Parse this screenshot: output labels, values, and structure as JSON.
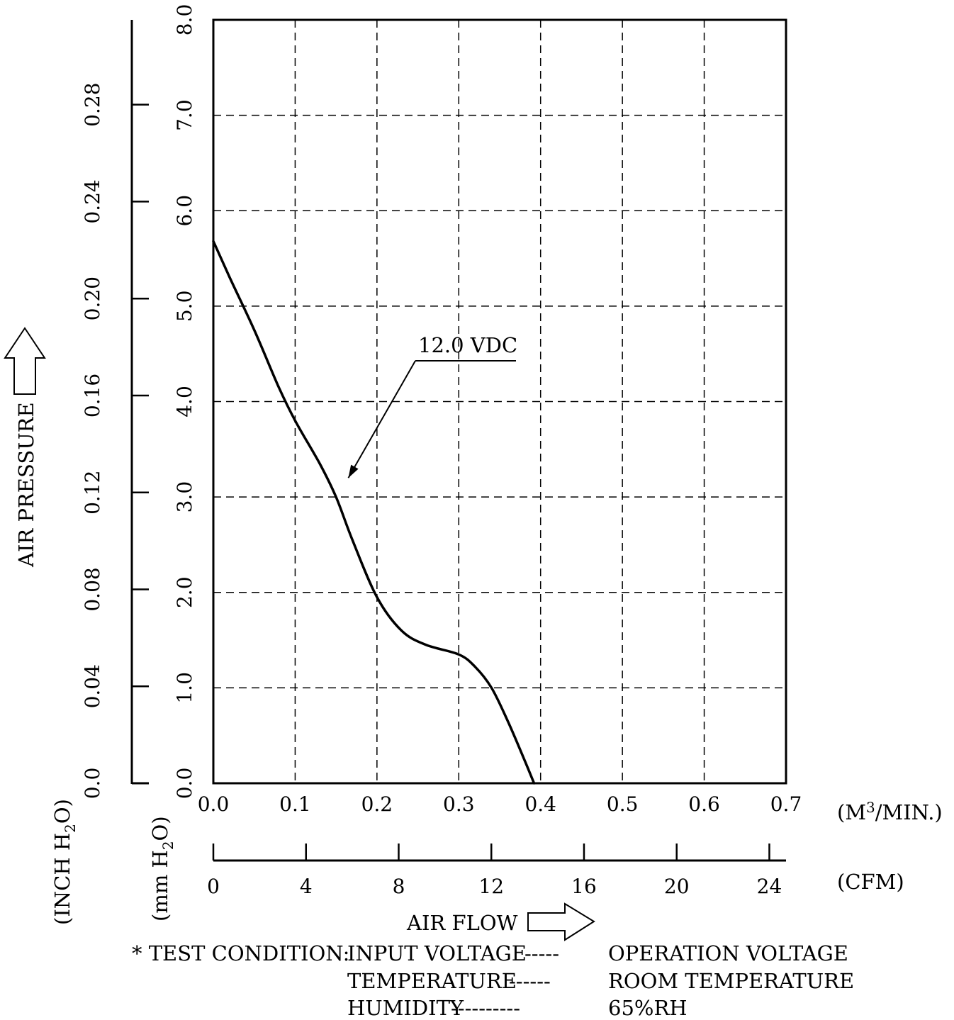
{
  "chart_data": {
    "type": "line",
    "xlabel": "AIR FLOW",
    "ylabel": "AIR PRESSURE",
    "x_unit": "(M3/MIN.)",
    "x_unit_parts": {
      "base": "(M",
      "sup": "3",
      "rest": "/MIN.)"
    },
    "x_unit_secondary": "(CFM)",
    "y_unit": "(mm H2O)",
    "y_unit_parts": {
      "pre": "(mm H",
      "sub": "2",
      "post": "O)"
    },
    "y_unit_secondary": "(INCH H2O)",
    "y_unit_secondary_parts": {
      "pre": "(INCH H",
      "sub": "2",
      "post": "O)"
    },
    "xlim": [
      0,
      0.7
    ],
    "ylim": [
      0,
      8.0
    ],
    "secondary_x_lim": [
      0,
      24.72
    ],
    "secondary_y_lim": [
      0,
      0.315
    ],
    "x_ticks": [
      "0.0",
      "0.1",
      "0.2",
      "0.3",
      "0.4",
      "0.5",
      "0.6",
      "0.7"
    ],
    "y_ticks": [
      "0.0",
      "1.0",
      "2.0",
      "3.0",
      "4.0",
      "5.0",
      "6.0",
      "7.0",
      "8.0"
    ],
    "secondary_x_ticks": [
      "0",
      "4",
      "8",
      "12",
      "16",
      "20",
      "24"
    ],
    "secondary_y_ticks": [
      "0.0",
      "0.04",
      "0.08",
      "0.12",
      "0.16",
      "0.20",
      "0.24",
      "0.28"
    ],
    "grid": true,
    "series": [
      {
        "name": "12.0 VDC",
        "x": [
          0.0,
          0.02,
          0.05,
          0.08,
          0.1,
          0.13,
          0.15,
          0.17,
          0.2,
          0.23,
          0.26,
          0.3,
          0.32,
          0.34,
          0.36,
          0.38,
          0.392
        ],
        "y": [
          5.68,
          5.3,
          4.75,
          4.15,
          3.8,
          3.35,
          3.0,
          2.55,
          1.95,
          1.6,
          1.45,
          1.35,
          1.22,
          1.0,
          0.65,
          0.25,
          0.0
        ]
      }
    ],
    "annotations": [
      {
        "text": "12.0 VDC",
        "target_x": 0.165,
        "target_y": 3.2
      }
    ]
  },
  "test_condition": {
    "prefix": "* TEST CONDITION:",
    "rows": [
      {
        "label": "INPUT VOLTAGE",
        "leader": "-----",
        "value": "OPERATION VOLTAGE"
      },
      {
        "label": "TEMPERATURE",
        "leader": "------",
        "value": "ROOM TEMPERATURE"
      },
      {
        "label": "HUMIDITY",
        "leader": "----------",
        "value": "65%RH"
      }
    ]
  }
}
